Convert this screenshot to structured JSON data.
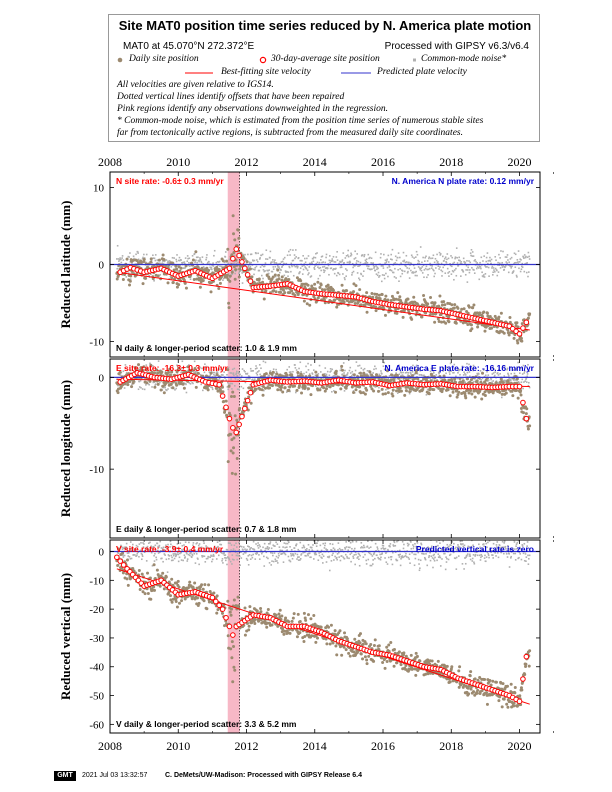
{
  "legend": {
    "title": "Site MAT0 position time series reduced by N. America plate motion",
    "coords": "MAT0 at 45.070°N 272.372°E",
    "processed": "Processed with GIPSY v6.3/v6.4",
    "items": {
      "daily": "Daily site position",
      "avg30": "30-day-average site position",
      "common": "Common-mode noise*",
      "bestfit": "Best-fitting site velocity",
      "predicted": "Predicted plate velocity"
    },
    "notes": [
      "All velocities are given relative to IGS14.",
      "Dotted vertical lines identify offsets that have been repaired",
      "Pink regions identify any observations downweighted in the regression.",
      "* Common-mode noise, which is estimated from the position time series of numerous stable sites",
      "far from tectonically active regions, is subtracted from the measured daily site coordinates."
    ],
    "colors": {
      "daily": "#9c8a70",
      "avg30": "#ff0000",
      "common": "#b0b0b0",
      "bestfit": "#ff0000",
      "predicted": "#3333cc",
      "pink": "#f7b8c6"
    }
  },
  "chart_data": [
    {
      "type": "scatter",
      "ylabel": "Reduced latitude (mm)",
      "xlim": [
        2008,
        2020.6
      ],
      "ylim": [
        -12,
        12
      ],
      "yticks": [
        -10,
        0,
        10
      ],
      "site_rate_label": "N site rate:  -0.6± 0.3 mm/yr",
      "plate_rate_label": "N. America N plate rate: 0.12 mm/yr",
      "scatter_label": "N daily & longer-period scatter:   1.0 &   1.9 mm",
      "downweighted_x": [
        2011.45,
        2011.8
      ],
      "offset_x": 2011.8,
      "predicted_line": [
        [
          2008,
          0
        ],
        [
          2020.6,
          0
        ]
      ],
      "bestfit_line": [
        [
          2008.2,
          -1.0
        ],
        [
          2020.3,
          -8.5
        ]
      ],
      "avg30": [
        [
          2008.3,
          -1.0
        ],
        [
          2008.6,
          -0.4
        ],
        [
          2009.0,
          -1.0
        ],
        [
          2009.5,
          -0.5
        ],
        [
          2010.0,
          -1.5
        ],
        [
          2010.5,
          -0.8
        ],
        [
          2011.0,
          -1.8
        ],
        [
          2011.5,
          -0.5
        ],
        [
          2011.7,
          2.0
        ],
        [
          2012.2,
          -3.0
        ],
        [
          2012.7,
          -2.8
        ],
        [
          2013.2,
          -2.5
        ],
        [
          2013.7,
          -3.5
        ],
        [
          2014.2,
          -3.8
        ],
        [
          2014.7,
          -4.0
        ],
        [
          2015.2,
          -4.2
        ],
        [
          2015.7,
          -4.8
        ],
        [
          2016.2,
          -5.2
        ],
        [
          2016.7,
          -5.5
        ],
        [
          2017.2,
          -5.8
        ],
        [
          2017.7,
          -6.0
        ],
        [
          2018.2,
          -6.5
        ],
        [
          2018.7,
          -7.0
        ],
        [
          2019.2,
          -7.5
        ],
        [
          2019.7,
          -8.0
        ],
        [
          2020.0,
          -9.0
        ],
        [
          2020.2,
          -7.5
        ]
      ]
    },
    {
      "type": "scatter",
      "ylabel": "Reduced longitude (mm)",
      "xlim": [
        2008,
        2020.6
      ],
      "ylim": [
        -17.5,
        2
      ],
      "yticks": [
        -10,
        0
      ],
      "site_rate_label": "E site rate:  -16.3± 0.3 mm/yr",
      "plate_rate_label": "N. America E plate rate: -16.16 mm/yr",
      "scatter_label": "E daily & longer-period scatter:   0.7 &   1.8 mm",
      "downweighted_x": [
        2011.45,
        2011.8
      ],
      "offset_x": 2011.8,
      "predicted_line": [
        [
          2008,
          0
        ],
        [
          2020.6,
          0
        ]
      ],
      "bestfit_line": [
        [
          2008.2,
          -0.2
        ],
        [
          2020.3,
          -1.0
        ]
      ],
      "avg30": [
        [
          2008.3,
          -0.5
        ],
        [
          2008.8,
          0.5
        ],
        [
          2009.3,
          0.0
        ],
        [
          2009.8,
          -0.2
        ],
        [
          2010.3,
          0.3
        ],
        [
          2010.8,
          -0.5
        ],
        [
          2011.2,
          -0.8
        ],
        [
          2011.5,
          -4.5
        ],
        [
          2011.6,
          -5.5
        ],
        [
          2011.7,
          -6.0
        ],
        [
          2012.2,
          -0.8
        ],
        [
          2012.7,
          -0.3
        ],
        [
          2013.2,
          -0.5
        ],
        [
          2013.7,
          -0.4
        ],
        [
          2014.2,
          -0.6
        ],
        [
          2014.7,
          -0.3
        ],
        [
          2015.2,
          -0.6
        ],
        [
          2015.7,
          -0.5
        ],
        [
          2016.2,
          -0.9
        ],
        [
          2016.7,
          -0.6
        ],
        [
          2017.2,
          -0.8
        ],
        [
          2017.7,
          -0.7
        ],
        [
          2018.2,
          -1.0
        ],
        [
          2018.7,
          -1.0
        ],
        [
          2019.2,
          -1.1
        ],
        [
          2019.7,
          -1.0
        ],
        [
          2020.0,
          -1.0
        ],
        [
          2020.2,
          -4.5
        ]
      ]
    },
    {
      "type": "scatter",
      "ylabel": "Reduced vertical (mm)",
      "xlim": [
        2008,
        2020.6
      ],
      "ylim": [
        -63,
        4
      ],
      "yticks": [
        -60,
        -50,
        -40,
        -30,
        -20,
        -10,
        0
      ],
      "site_rate_label": "V site rate:  -3.9± 0.4 mm/yr",
      "plate_rate_label": "Predicted vertical rate is zero",
      "scatter_label": "V daily & longer-period scatter:   3.3 &   5.2 mm",
      "downweighted_x": [
        2011.45,
        2011.8
      ],
      "offset_x": 2011.8,
      "predicted_line": [
        [
          2008,
          0
        ],
        [
          2020.6,
          0
        ]
      ],
      "bestfit_line": [
        [
          2008.2,
          -6.0
        ],
        [
          2020.3,
          -53.0
        ]
      ],
      "avg30": [
        [
          2008.2,
          -2.0
        ],
        [
          2008.5,
          -6.0
        ],
        [
          2009.0,
          -12.0
        ],
        [
          2009.5,
          -10.0
        ],
        [
          2010.0,
          -15.0
        ],
        [
          2010.5,
          -14.0
        ],
        [
          2011.0,
          -16.0
        ],
        [
          2011.3,
          -20.0
        ],
        [
          2011.6,
          -29.0
        ],
        [
          2011.7,
          -26.0
        ],
        [
          2012.2,
          -22.0
        ],
        [
          2012.7,
          -23.0
        ],
        [
          2013.2,
          -26.0
        ],
        [
          2013.7,
          -26.0
        ],
        [
          2014.2,
          -28.0
        ],
        [
          2014.7,
          -31.0
        ],
        [
          2015.2,
          -33.0
        ],
        [
          2015.7,
          -35.0
        ],
        [
          2016.2,
          -36.0
        ],
        [
          2016.7,
          -38.0
        ],
        [
          2017.2,
          -40.0
        ],
        [
          2017.7,
          -41.0
        ],
        [
          2018.2,
          -44.0
        ],
        [
          2018.7,
          -46.0
        ],
        [
          2019.2,
          -48.0
        ],
        [
          2019.7,
          -50.0
        ],
        [
          2020.0,
          -52.0
        ],
        [
          2020.2,
          -36.5
        ]
      ]
    }
  ],
  "x_axis": {
    "ticks": [
      2008,
      2010,
      2012,
      2014,
      2016,
      2018,
      2020
    ]
  },
  "footer": {
    "gmt": "GMT",
    "timestamp": "2021 Jul 03 13:32:57",
    "credit": "C. DeMets/UW-Madison: Processed with GIPSY Release 6.4"
  }
}
